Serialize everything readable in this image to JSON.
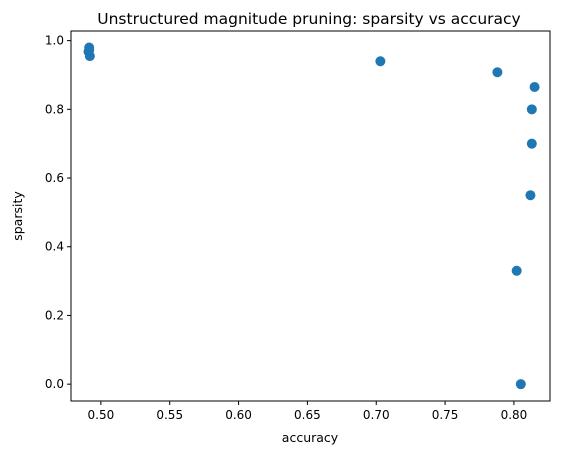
{
  "chart_data": {
    "type": "scatter",
    "title": "Unstructured magnitude pruning: sparsity vs accuracy",
    "xlabel": "accuracy",
    "ylabel": "sparsity",
    "xlim": [
      0.4783,
      0.8262
    ],
    "ylim": [
      -0.049,
      1.028
    ],
    "xticks": [
      0.5,
      0.55,
      0.6,
      0.65,
      0.7,
      0.75,
      0.8
    ],
    "xtick_labels": [
      "0.50",
      "0.55",
      "0.60",
      "0.65",
      "0.70",
      "0.75",
      "0.80"
    ],
    "yticks": [
      0.0,
      0.2,
      0.4,
      0.6,
      0.8,
      1.0
    ],
    "ytick_labels": [
      "0.0",
      "0.2",
      "0.4",
      "0.6",
      "0.8",
      "1.0"
    ],
    "grid": false,
    "legend": "none",
    "marker_color": "#1f77b4",
    "series": [
      {
        "points": [
          {
            "x": 0.805,
            "y": 0.0
          },
          {
            "x": 0.802,
            "y": 0.33
          },
          {
            "x": 0.812,
            "y": 0.55
          },
          {
            "x": 0.813,
            "y": 0.7
          },
          {
            "x": 0.813,
            "y": 0.8
          },
          {
            "x": 0.815,
            "y": 0.865
          },
          {
            "x": 0.788,
            "y": 0.908
          },
          {
            "x": 0.703,
            "y": 0.94
          },
          {
            "x": 0.492,
            "y": 0.955
          },
          {
            "x": 0.491,
            "y": 0.968
          },
          {
            "x": 0.4915,
            "y": 0.973
          },
          {
            "x": 0.4915,
            "y": 0.98
          }
        ]
      }
    ]
  }
}
